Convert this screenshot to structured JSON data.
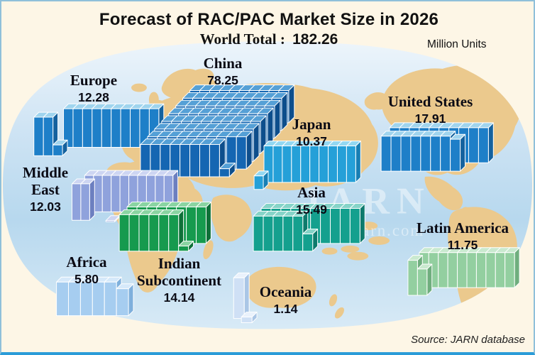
{
  "header": {
    "title": "Forecast of RAC/PAC Market Size in 2026",
    "world_total_label": "World Total :",
    "world_total_value": "182.26",
    "units_label": "Million Units"
  },
  "footer": {
    "source": "Source: JARN database"
  },
  "watermark": {
    "line1": "JARN",
    "line2": "www.ejarn.com"
  },
  "palette": {
    "background": "#fdf6e6",
    "border": "#8fc0da",
    "bottom_line": "#2b9cd8",
    "land": "#ebc98d",
    "ocean_top": "#edf5fb",
    "ocean_upper": "#cfe4f4",
    "ocean_mid": "#b7d8ee",
    "ocean_bottom": "#d8eaf6",
    "watermark": "rgba(255,255,255,0.45)",
    "text": "#111111"
  },
  "chart_data": {
    "type": "bar",
    "variant": "3d-unit-block pictogram over world map (1 block = 1 million units)",
    "title": "Forecast of RAC/PAC Market Size in 2026",
    "world_total": 182.26,
    "units": "Million Units",
    "unit_block_value": 1,
    "source": "Source: JARN database",
    "regions": [
      {
        "id": "europe",
        "name": "Europe",
        "value": 12.28,
        "display": "12.28",
        "blocks": {
          "rows": [
            10,
            2
          ],
          "fraction": 0.28
        },
        "colors": {
          "front": "#1e7fc8",
          "top": "#9fd4ee",
          "side": "#14619e"
        }
      },
      {
        "id": "china",
        "name": "China",
        "value": 78.25,
        "display": "78.25",
        "blocks": {
          "rows": [
            10,
            10,
            10,
            10,
            10,
            10,
            10,
            8
          ],
          "fraction": 0.25
        },
        "colors": {
          "front": "#1566b2",
          "top": "#55a0d6",
          "side": "#0d4e8c"
        }
      },
      {
        "id": "japan",
        "name": "Japan",
        "value": 10.37,
        "display": "10.37",
        "blocks": {
          "rows": [
            10
          ],
          "fraction": 0.37
        },
        "colors": {
          "front": "#25a0d8",
          "top": "#93d8f2",
          "side": "#187fb4"
        }
      },
      {
        "id": "united-states",
        "name": "United States",
        "value": 17.91,
        "display": "17.91",
        "blocks": {
          "rows": [
            10,
            7
          ],
          "fraction": 0.91
        },
        "colors": {
          "front": "#1e7fc8",
          "top": "#9fd4ee",
          "side": "#14619e"
        }
      },
      {
        "id": "middle-east",
        "name": "Middle East",
        "value": 12.03,
        "display": "12.03",
        "blocks": {
          "rows": [
            10,
            2
          ],
          "fraction": 0.03
        },
        "colors": {
          "front": "#8fa2dc",
          "top": "#cdd5f2",
          "side": "#6c7fc0"
        }
      },
      {
        "id": "asia",
        "name": "Asia",
        "value": 15.49,
        "display": "15.49",
        "blocks": {
          "rows": [
            10,
            5
          ],
          "fraction": 0.49
        },
        "colors": {
          "front": "#14a08e",
          "top": "#86d4c8",
          "side": "#0d7a6c"
        }
      },
      {
        "id": "indian-subcontinent",
        "name": "Indian Subcontinent",
        "value": 14.14,
        "display": "14.14",
        "blocks": {
          "rows": [
            8,
            6
          ],
          "fraction": 0.14
        },
        "colors": {
          "front": "#169a4e",
          "top": "#8ad4a2",
          "side": "#0e7038"
        }
      },
      {
        "id": "africa",
        "name": "Africa",
        "value": 5.8,
        "display": "5.80",
        "blocks": {
          "rows": [
            5
          ],
          "fraction": 0.8
        },
        "colors": {
          "front": "#a6cdf0",
          "top": "#d6e9fa",
          "side": "#7fb0dc"
        }
      },
      {
        "id": "oceania",
        "name": "Oceania",
        "value": 1.14,
        "display": "1.14",
        "blocks": {
          "rows": [
            1
          ],
          "fraction": 0.14
        },
        "colors": {
          "front": "#cfe0f5",
          "top": "#eaf2fc",
          "side": "#aac6e6"
        }
      },
      {
        "id": "latin-america",
        "name": "Latin America",
        "value": 11.75,
        "display": "11.75",
        "blocks": {
          "rows": [
            10,
            1
          ],
          "fraction": 0.75
        },
        "colors": {
          "front": "#93cfa0",
          "top": "#c9e9cf",
          "side": "#6fae7e"
        }
      }
    ]
  }
}
